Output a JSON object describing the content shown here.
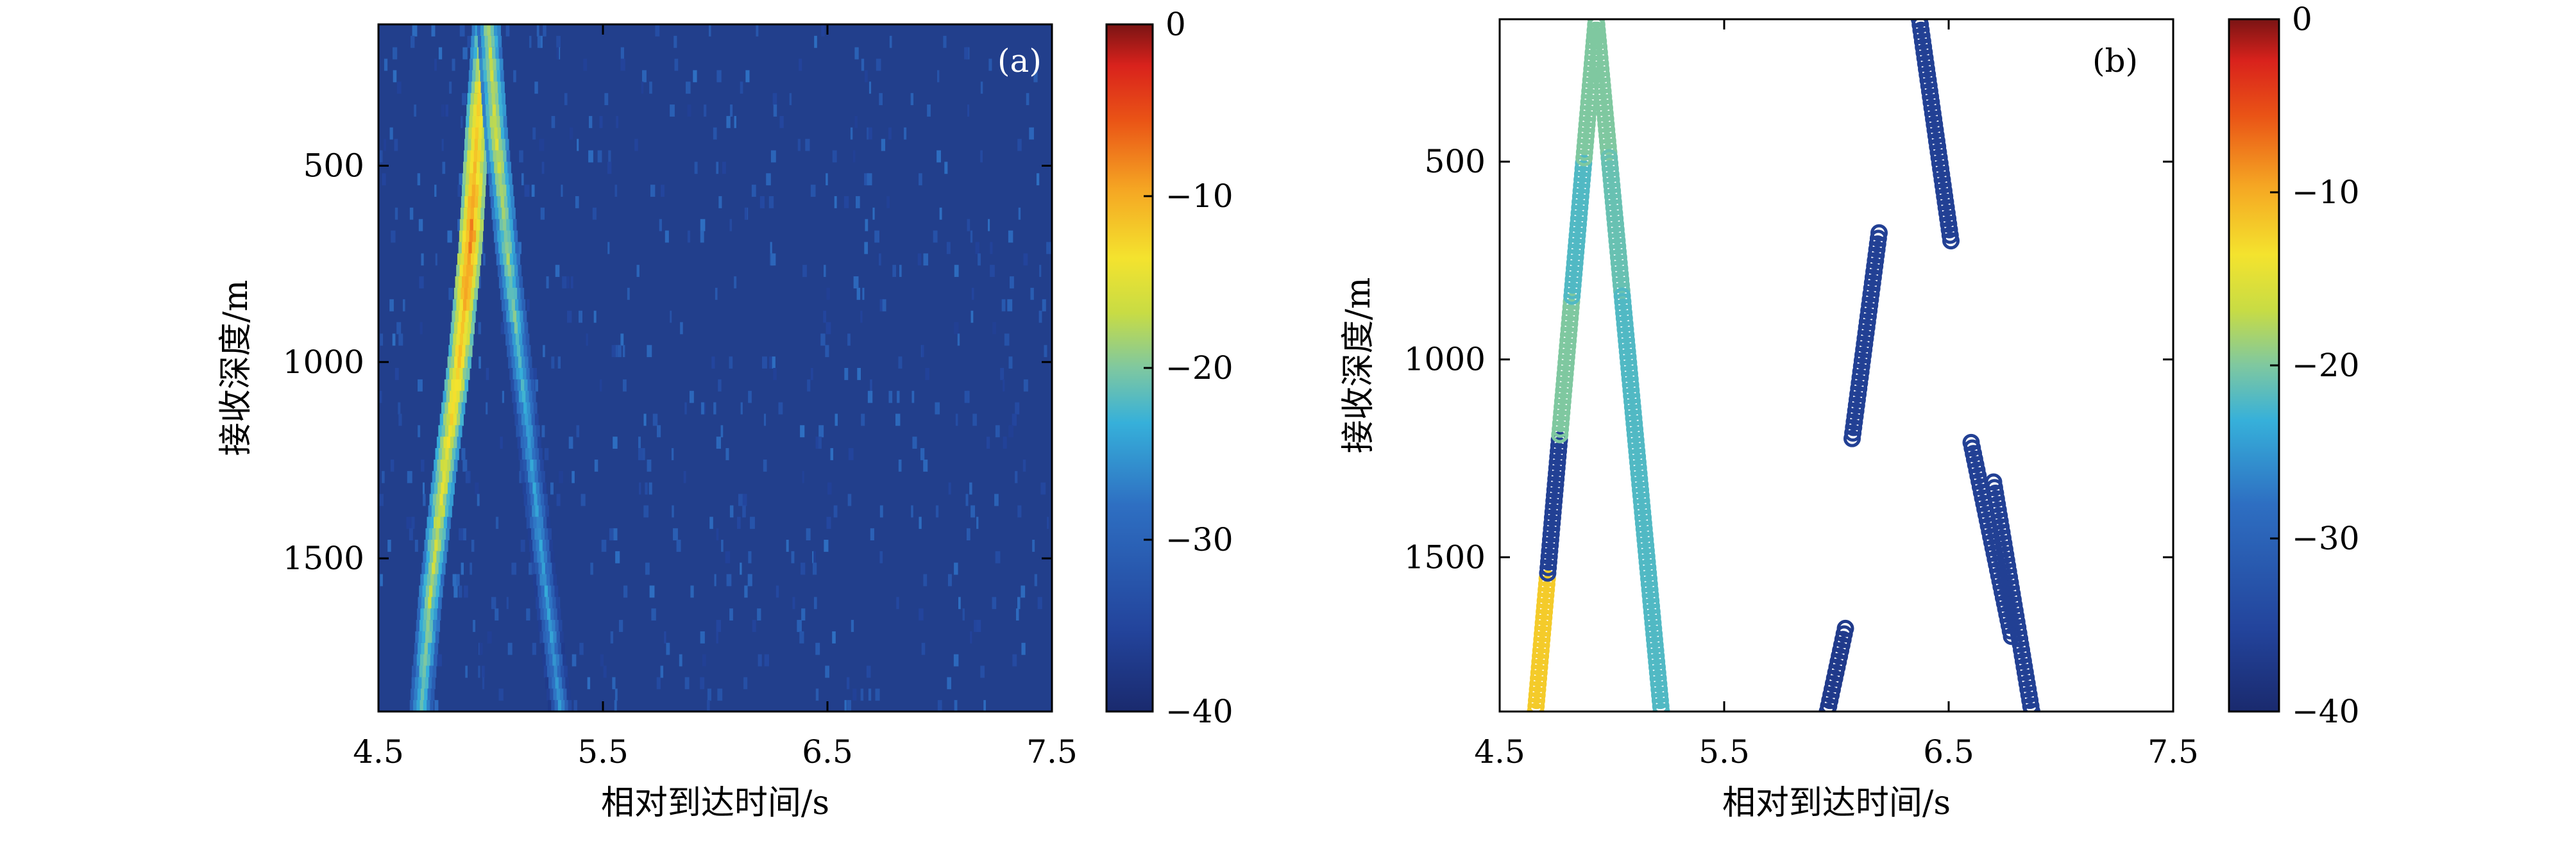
{
  "chart_data": [
    {
      "type": "heatmap",
      "panel_label": "(a)",
      "xlabel": "相对到达时间/s",
      "ylabel": "接收深度/m",
      "xlim": [
        4.5,
        7.5
      ],
      "ylim": [
        1890,
        140
      ],
      "y_reversed": true,
      "xticks": [
        4.5,
        5.5,
        6.5,
        7.5
      ],
      "xtick_labels": [
        "4.5",
        "5.5",
        "6.5",
        "7.5"
      ],
      "yticks": [
        500,
        1000,
        1500
      ],
      "ytick_labels": [
        "500",
        "1000",
        "1500"
      ],
      "colorbar": {
        "range": [
          -40,
          0
        ],
        "ticks": [
          0,
          -10,
          -20,
          -30,
          -40
        ],
        "tick_labels": [
          "0",
          "−10",
          "−20",
          "−30",
          "−40"
        ],
        "colormap": "jet"
      },
      "background_level_db": -36,
      "ridges": [
        {
          "points": [
            [
              4.97,
              140
            ],
            [
              4.94,
              400
            ],
            [
              4.91,
              700
            ],
            [
              4.86,
              1000
            ],
            [
              4.79,
              1300
            ],
            [
              4.73,
              1600
            ],
            [
              4.69,
              1890
            ]
          ],
          "peak_db": [
            -18,
            -12,
            -8,
            -12,
            -15,
            -18,
            -22
          ]
        },
        {
          "points": [
            [
              4.99,
              140
            ],
            [
              5.02,
              400
            ],
            [
              5.07,
              700
            ],
            [
              5.13,
              1000
            ],
            [
              5.19,
              1300
            ],
            [
              5.25,
              1600
            ],
            [
              5.31,
              1890
            ]
          ],
          "peak_db": [
            -18,
            -16,
            -19,
            -22,
            -25,
            -25,
            -26
          ]
        }
      ]
    },
    {
      "type": "scatter",
      "panel_label": "(b)",
      "xlabel": "相对到达时间/s",
      "ylabel": "接收深度/m",
      "xlim": [
        4.5,
        7.5
      ],
      "ylim": [
        1890,
        140
      ],
      "y_reversed": true,
      "xticks": [
        4.5,
        5.5,
        6.5,
        7.5
      ],
      "xtick_labels": [
        "4.5",
        "5.5",
        "6.5",
        "7.5"
      ],
      "yticks": [
        500,
        1000,
        1500
      ],
      "ytick_labels": [
        "500",
        "1000",
        "1500"
      ],
      "marker": "open-circle",
      "colorbar": {
        "range": [
          -40,
          0
        ],
        "ticks": [
          0,
          -10,
          -20,
          -30,
          -40
        ],
        "tick_labels": [
          "0",
          "−10",
          "−20",
          "−30",
          "−40"
        ],
        "colormap": "jet"
      },
      "segments": [
        {
          "x": [
            4.66,
            4.93
          ],
          "y": [
            1890,
            140
          ],
          "color_db": [
            -12,
            -36,
            -20,
            -22,
            -20
          ]
        },
        {
          "x": [
            4.93,
            5.22
          ],
          "y": [
            140,
            1890
          ],
          "color_db": [
            -20,
            -21,
            -22,
            -22,
            -22
          ]
        },
        {
          "x": [
            6.37,
            6.51
          ],
          "y": [
            140,
            700
          ],
          "color_db": [
            -36
          ]
        },
        {
          "x": [
            6.07,
            6.19
          ],
          "y": [
            1200,
            680
          ],
          "color_db": [
            -36
          ]
        },
        {
          "x": [
            5.96,
            6.04
          ],
          "y": [
            1890,
            1680
          ],
          "color_db": [
            -37
          ]
        },
        {
          "x": [
            6.6,
            6.78
          ],
          "y": [
            1210,
            1700
          ],
          "color_db": [
            -36
          ]
        },
        {
          "x": [
            6.7,
            6.87
          ],
          "y": [
            1310,
            1890
          ],
          "color_db": [
            -36
          ]
        }
      ]
    }
  ]
}
